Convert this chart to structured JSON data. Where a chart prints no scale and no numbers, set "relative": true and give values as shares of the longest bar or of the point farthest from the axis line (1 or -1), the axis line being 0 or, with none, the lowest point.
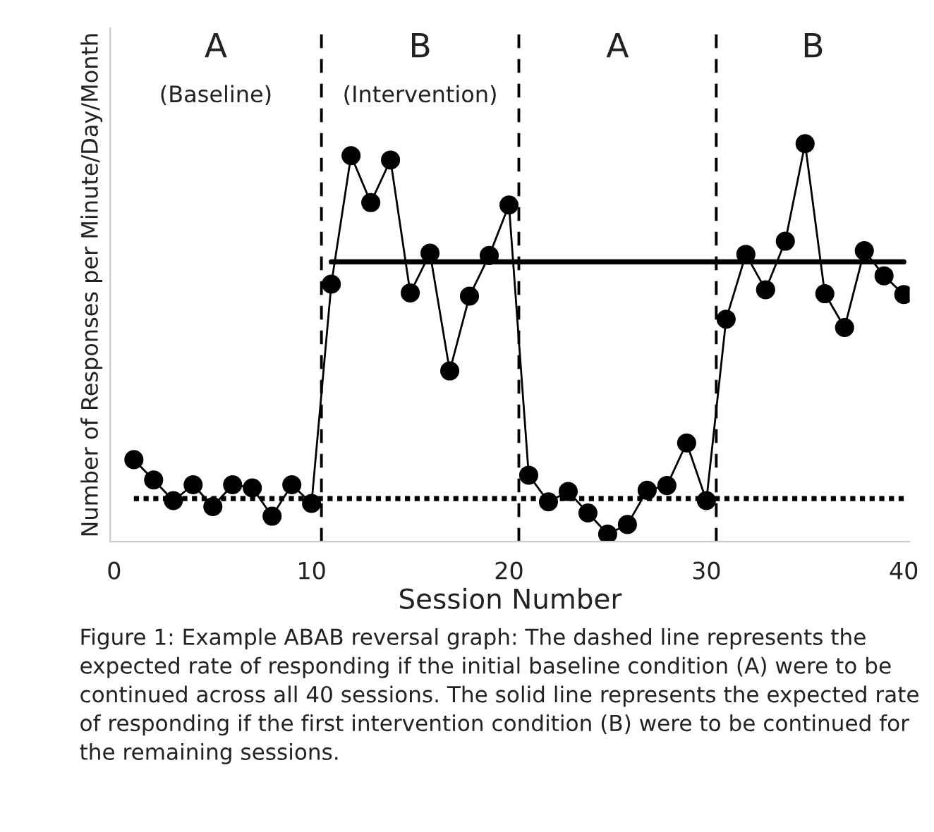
{
  "chart_data": {
    "type": "line",
    "relative": true,
    "xlabel": "Session Number",
    "ylabel": "Number of Responses per Minute/Day/Month",
    "xlim": [
      -0.2,
      40.3
    ],
    "xticks": [
      0,
      10,
      20,
      30,
      40
    ],
    "grid": false,
    "legend": false,
    "series": [
      {
        "color": "#000000",
        "marker": "circle",
        "line_style": "solid",
        "x": [
          1,
          2,
          3,
          4,
          5,
          6,
          7,
          8,
          9,
          10,
          11,
          12,
          13,
          14,
          15,
          16,
          17,
          18,
          19,
          20,
          21,
          22,
          23,
          24,
          25,
          26,
          27,
          28,
          29,
          30,
          31,
          32,
          33,
          34,
          35,
          36,
          37,
          38,
          39,
          40
        ],
        "values": [
          0.206,
          0.155,
          0.103,
          0.143,
          0.088,
          0.143,
          0.135,
          0.064,
          0.143,
          0.096,
          0.647,
          0.97,
          0.852,
          0.959,
          0.625,
          0.725,
          0.429,
          0.617,
          0.719,
          0.846,
          0.167,
          0.1,
          0.126,
          0.072,
          0.019,
          0.043,
          0.129,
          0.141,
          0.248,
          0.103,
          0.559,
          0.722,
          0.633,
          0.755,
          1,
          0.623,
          0.538,
          0.731,
          0.668,
          0.621
        ]
      },
      {
        "color": "#000000",
        "marker": "none",
        "line_style": "dotted",
        "x": [
          1,
          40
        ],
        "values": [
          0.108,
          0.108
        ]
      },
      {
        "color": "#000000",
        "marker": "none",
        "line_style": "solid",
        "x": [
          11,
          40
        ],
        "values": [
          0.703,
          0.703
        ]
      }
    ],
    "ref_lines": [
      {
        "axis": "x",
        "value": 10.5,
        "color": "#000000",
        "line_style": "dashed"
      },
      {
        "axis": "x",
        "value": 20.5,
        "color": "#000000",
        "line_style": "dashed"
      },
      {
        "axis": "x",
        "value": 30.5,
        "color": "#000000",
        "line_style": "dashed"
      }
    ],
    "annotations": [
      "A",
      "(Baseline)",
      "B",
      "(Intervention)",
      "A",
      "B",
      "Figure 1: Example ABAB reversal graph: The dashed line represents the expected rate of responding if the initial baseline condition (A) were to be continued across all 40 sessions. The solid line represents the expected rate of responding if the first intervention condition (B) were to be continued for the remaining sessions."
    ]
  }
}
